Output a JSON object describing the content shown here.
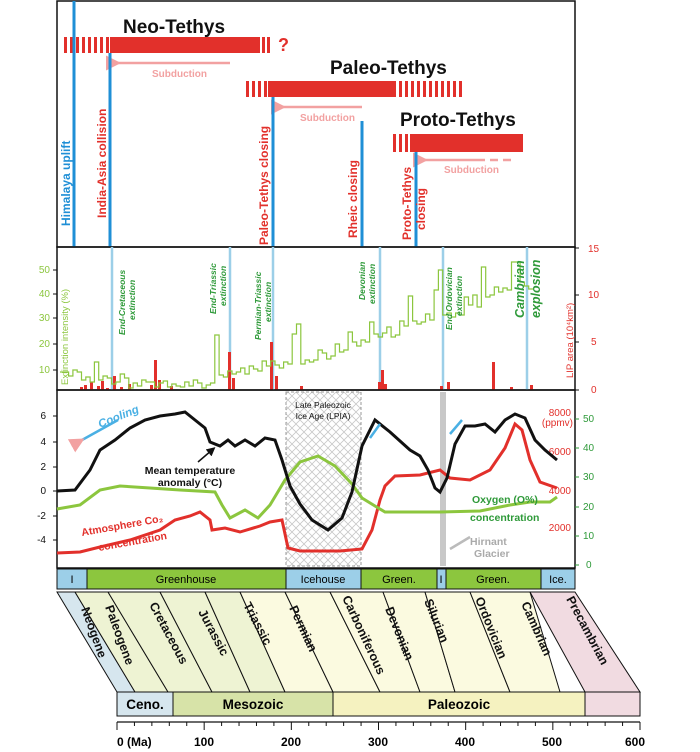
{
  "panel1": {
    "neo_title": "Neo-Tethys",
    "neo_question": "?",
    "paleo_title": "Paleo-Tethys",
    "proto_title": "Proto-Tethys",
    "subduction": "Subduction",
    "events": [
      "Himalaya uplift",
      "India-Asia collision",
      "Paleo-Tethys closing",
      "Rheic closing",
      "Proto-Tethys",
      "closing"
    ]
  },
  "panel2": {
    "left_axis_label": "Extinction intensity (%)",
    "right_axis_label": "LIP area (10⁴km²)",
    "left_ticks": [
      "10",
      "20",
      "30",
      "40",
      "50"
    ],
    "right_ticks": [
      "0",
      "5",
      "10",
      "15"
    ],
    "extinctions": [
      {
        "l1": "End-Cretaceous",
        "l2": "extinction"
      },
      {
        "l1": "End-Triassic",
        "l2": "extinction"
      },
      {
        "l1": "Permian-Triassic",
        "l2": "extinction"
      },
      {
        "l1": "Devonian",
        "l2": "extinction"
      },
      {
        "l1": "End Ordovician",
        "l2": "extinction"
      }
    ],
    "cambrian_l1": "Cambrian",
    "cambrian_l2": "explosion"
  },
  "panel3": {
    "cooling": "Cooling",
    "lpia_l1": "Late Paleozoic",
    "lpia_l2": "Ice Age (LPIA)",
    "temp_l1": "Mean temperature",
    "temp_l2": "anomaly (°C)",
    "oxygen_l1": "Oxygen (O%)",
    "oxygen_l2": "concentration",
    "co2_l1": "Atmosphere Co₂",
    "co2_l2": "concentration",
    "hirnant_l1": "Hirnant",
    "hirnant_l2": "Glacier",
    "ppmv": "(ppmv)",
    "left_ticks": [
      "6",
      "4",
      "2",
      "0",
      "-2",
      "-4"
    ],
    "co2_ticks": [
      "8000",
      "6000",
      "4000",
      "2000"
    ],
    "o2_ticks": [
      "50",
      "40",
      "30",
      "20",
      "10",
      "0"
    ]
  },
  "climate_bar": [
    "I",
    "Greenhouse",
    "Icehouse",
    "Green.",
    "I",
    "Green.",
    "Ice."
  ],
  "periods": [
    "Neogene",
    "Paleogene",
    "Cretaceous",
    "Jurassic",
    "Triassic",
    "Permian",
    "Carboniferous",
    "Devonian",
    "Silurian",
    "Ordovician",
    "Cambrian",
    "Precambrian"
  ],
  "eras": [
    "Ceno.",
    "Mesozoic",
    "Paleozoic"
  ],
  "age_axis": {
    "label": "0 (Ma)",
    "ticks": [
      "100",
      "200",
      "300",
      "400",
      "500",
      "600"
    ]
  },
  "colors": {
    "red": "#e2302b",
    "pink": "#f2a1a1",
    "blue": "#1f8fd6",
    "lightblue": "#9ccfe8",
    "green": "#8cc63e",
    "darkgreen": "#2f9a3a",
    "cenozoic": "#d6e6ee",
    "mesozoic": "#d7e3a8",
    "paleozoic": "#f5f2c0",
    "precambrian": "#f1dbe1"
  }
}
